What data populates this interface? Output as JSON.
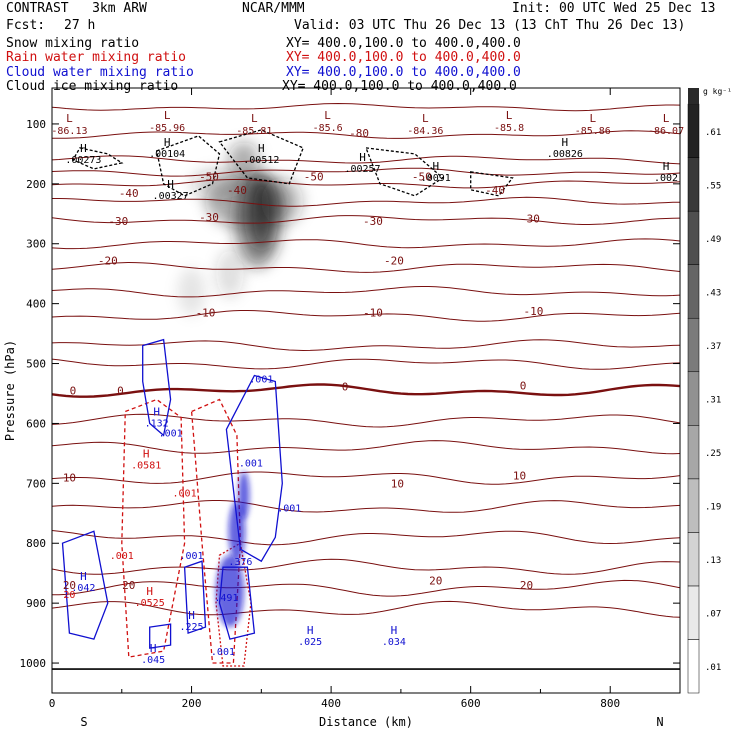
{
  "header": {
    "model": "CONTRAST   3km ARW",
    "org": "NCAR/MMM",
    "init": "Init: 00 UTC Wed 25 Dec 13",
    "fcst_label": "Fcst:",
    "fcst_value": "27 h",
    "valid": "Valid: 03 UTC Thu 26 Dec 13 (13 ChT Thu 26 Dec 13)",
    "fields": [
      {
        "name": "Snow mixing ratio",
        "xy": "XY= 400.0,100.0 to 400.0,400.0",
        "color": "#000000"
      },
      {
        "name": "Rain water mixing ratio",
        "xy": "XY= 400.0,100.0 to 400.0,400.0",
        "color": "#d01010"
      },
      {
        "name": "Cloud water mixing ratio",
        "xy": "XY= 400.0,100.0 to 400.0,400.0",
        "color": "#1010d0"
      },
      {
        "name": "Cloud ice mixing ratio",
        "xy": "XY= 400.0,100.0 to 400.0,400.0",
        "color": "#000000"
      }
    ]
  },
  "chart_data": {
    "type": "heatmap",
    "xlabel": "Distance (km)",
    "ylabel": "Pressure (hPa)",
    "xlim": [
      0,
      900
    ],
    "ylim": [
      1050,
      40
    ],
    "x_ticks": [
      0,
      200,
      400,
      600,
      800
    ],
    "y_ticks": [
      100,
      200,
      300,
      400,
      500,
      600,
      700,
      800,
      900,
      1000
    ],
    "end_labels": {
      "left": "S",
      "right": "N"
    },
    "colorbar": {
      "unit": "g kg⁻¹",
      "ticks": [
        ".01",
        ".07",
        ".13",
        ".19",
        ".25",
        ".31",
        ".37",
        ".43",
        ".49",
        ".55",
        ".61"
      ]
    },
    "temperature_contours": [
      {
        "label": "-80",
        "x": 440,
        "p": 115
      },
      {
        "label": "-50",
        "x": 225,
        "p": 188
      },
      {
        "label": "-50",
        "x": 375,
        "p": 188
      },
      {
        "label": "-50",
        "x": 530,
        "p": 188
      },
      {
        "label": "-40",
        "x": 110,
        "p": 215
      },
      {
        "label": "-40",
        "x": 265,
        "p": 210
      },
      {
        "label": "-40",
        "x": 635,
        "p": 210
      },
      {
        "label": "-30",
        "x": 95,
        "p": 262
      },
      {
        "label": "-30",
        "x": 225,
        "p": 255
      },
      {
        "label": "-30",
        "x": 460,
        "p": 262
      },
      {
        "label": "-30",
        "x": 685,
        "p": 258
      },
      {
        "label": "-20",
        "x": 80,
        "p": 328
      },
      {
        "label": "-20",
        "x": 490,
        "p": 328
      },
      {
        "label": "-10",
        "x": 220,
        "p": 415
      },
      {
        "label": "-10",
        "x": 460,
        "p": 415
      },
      {
        "label": "-10",
        "x": 690,
        "p": 412
      },
      {
        "label": "0",
        "x": 30,
        "p": 545
      },
      {
        "label": "0",
        "x": 98,
        "p": 545
      },
      {
        "label": "0",
        "x": 420,
        "p": 538
      },
      {
        "label": "0",
        "x": 675,
        "p": 537
      },
      {
        "label": "10",
        "x": 25,
        "p": 690
      },
      {
        "label": "10",
        "x": 495,
        "p": 700
      },
      {
        "label": "10",
        "x": 670,
        "p": 687
      },
      {
        "label": "20",
        "x": 25,
        "p": 870
      },
      {
        "label": "20",
        "x": 110,
        "p": 870
      },
      {
        "label": "20",
        "x": 550,
        "p": 862
      },
      {
        "label": "20",
        "x": 680,
        "p": 870
      }
    ],
    "low_labels": [
      {
        "label": "L",
        "value": "-86.13",
        "x": 25,
        "p": 90
      },
      {
        "label": "L",
        "value": "-85.96",
        "x": 165,
        "p": 85
      },
      {
        "label": "L",
        "value": "-85.81",
        "x": 290,
        "p": 90
      },
      {
        "label": "L",
        "value": "-85.6",
        "x": 395,
        "p": 85
      },
      {
        "label": "L",
        "value": "-84.36",
        "x": 535,
        "p": 90
      },
      {
        "label": "L",
        "value": "-85.8",
        "x": 655,
        "p": 85
      },
      {
        "label": "L",
        "value": "-85.86",
        "x": 775,
        "p": 90
      },
      {
        "label": "L",
        "value": "-86.07",
        "x": 880,
        "p": 90
      }
    ],
    "high_labels": [
      {
        "label": "H",
        "value": ".00273",
        "x": 45,
        "p": 140,
        "color": "#000000"
      },
      {
        "label": "H",
        "value": ".00104",
        "x": 165,
        "p": 130,
        "color": "#000000"
      },
      {
        "label": "H",
        "value": ".00512",
        "x": 300,
        "p": 140,
        "color": "#000000"
      },
      {
        "label": "H",
        "value": ".00257",
        "x": 445,
        "p": 155,
        "color": "#000000"
      },
      {
        "label": "H",
        "value": ".0091",
        "x": 550,
        "p": 170,
        "color": "#000000"
      },
      {
        "label": "H",
        "value": ".00826",
        "x": 735,
        "p": 130,
        "color": "#000000"
      },
      {
        "label": "H",
        "value": ".002",
        "x": 880,
        "p": 170,
        "color": "#000000"
      },
      {
        "label": "H",
        "value": ".00327",
        "x": 170,
        "p": 200,
        "color": "#000000"
      },
      {
        "label": "H",
        "value": ".132",
        "x": 150,
        "p": 580,
        "color": "#1010d0"
      },
      {
        "label": "H",
        "value": ".0581",
        "x": 135,
        "p": 650,
        "color": "#d01010"
      },
      {
        "label": "H",
        "value": ".0525",
        "x": 140,
        "p": 880,
        "color": "#d01010"
      },
      {
        "label": "H",
        "value": ".042",
        "x": 45,
        "p": 855,
        "color": "#1010d0"
      },
      {
        "label": "H",
        "value": ".225",
        "x": 200,
        "p": 920,
        "color": "#1010d0"
      },
      {
        "label": "H",
        "value": ".045",
        "x": 145,
        "p": 975,
        "color": "#1010d0"
      },
      {
        "label": "H",
        "value": ".025",
        "x": 370,
        "p": 945,
        "color": "#1010d0"
      },
      {
        "label": "H",
        "value": ".034",
        "x": 490,
        "p": 945,
        "color": "#1010d0"
      }
    ],
    "point_labels": [
      {
        "value": ".001",
        "x": 300,
        "p": 525,
        "color": "#1010d0"
      },
      {
        "value": ".001",
        "x": 170,
        "p": 615,
        "color": "#1010d0"
      },
      {
        "value": ".001",
        "x": 285,
        "p": 665,
        "color": "#1010d0"
      },
      {
        "value": ".001",
        "x": 190,
        "p": 715,
        "color": "#d01010"
      },
      {
        "value": ".001",
        "x": 340,
        "p": 740,
        "color": "#1010d0"
      },
      {
        "value": ".001",
        "x": 100,
        "p": 820,
        "color": "#d01010"
      },
      {
        "value": ".001",
        "x": 200,
        "p": 820,
        "color": "#1010d0"
      },
      {
        "value": ".376",
        "x": 270,
        "p": 830,
        "color": "#1010d0"
      },
      {
        "value": ".491",
        "x": 250,
        "p": 890,
        "color": "#1010d0"
      },
      {
        "value": ".001",
        "x": 245,
        "p": 980,
        "color": "#1010d0"
      },
      {
        "value": "20",
        "x": 25,
        "p": 885,
        "color": "#d01010"
      }
    ]
  }
}
